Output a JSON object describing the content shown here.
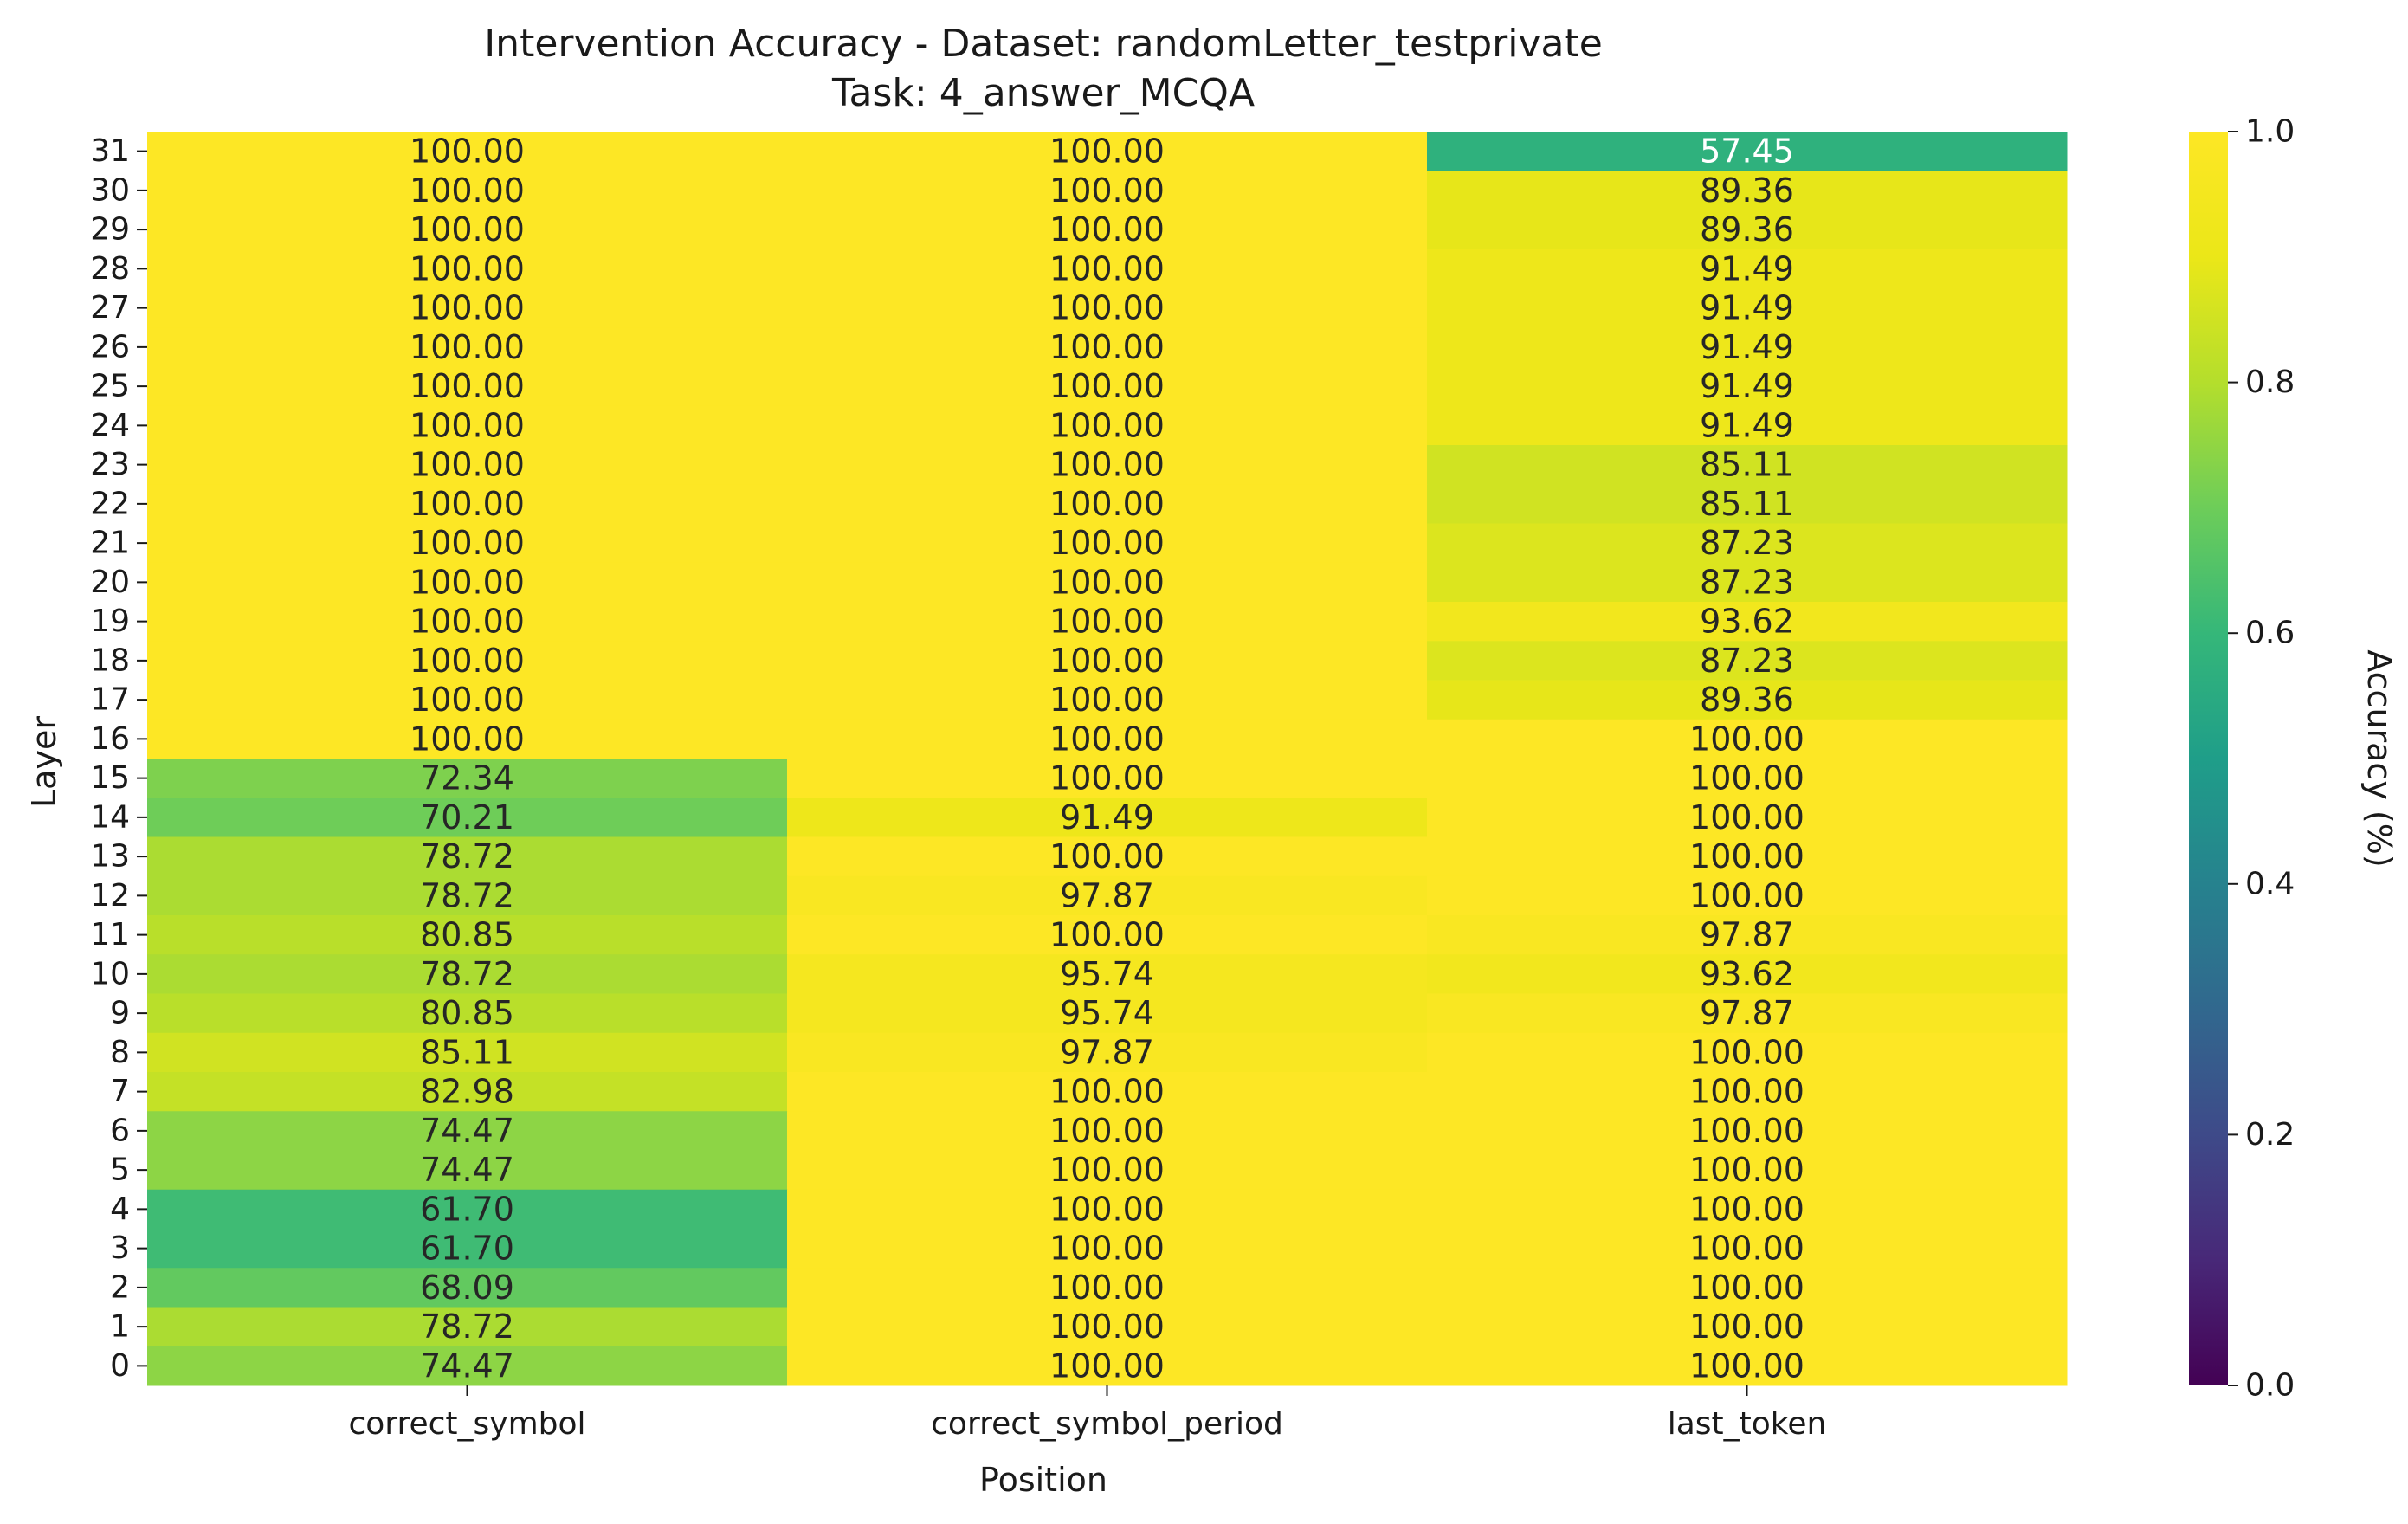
{
  "chart_data": {
    "type": "heatmap",
    "title": "Intervention Accuracy - Dataset: randomLetter_testprivate",
    "subtitle": "Task: 4_answer_MCQA",
    "xlabel": "Position",
    "ylabel": "Layer",
    "colorbar_label": "Accuracy (%)",
    "colormap": "viridis",
    "vmin": 0.0,
    "vmax": 1.0,
    "colorbar_ticks": [
      "0.0",
      "0.2",
      "0.4",
      "0.6",
      "0.8",
      "1.0"
    ],
    "x_categories": [
      "correct_symbol",
      "correct_symbol_period",
      "last_token"
    ],
    "y_categories": [
      "31",
      "30",
      "29",
      "28",
      "27",
      "26",
      "25",
      "24",
      "23",
      "22",
      "21",
      "20",
      "19",
      "18",
      "17",
      "16",
      "15",
      "14",
      "13",
      "12",
      "11",
      "10",
      "9",
      "8",
      "7",
      "6",
      "5",
      "4",
      "3",
      "2",
      "1",
      "0"
    ],
    "values": [
      [
        "100.00",
        "100.00",
        "57.45"
      ],
      [
        "100.00",
        "100.00",
        "89.36"
      ],
      [
        "100.00",
        "100.00",
        "89.36"
      ],
      [
        "100.00",
        "100.00",
        "91.49"
      ],
      [
        "100.00",
        "100.00",
        "91.49"
      ],
      [
        "100.00",
        "100.00",
        "91.49"
      ],
      [
        "100.00",
        "100.00",
        "91.49"
      ],
      [
        "100.00",
        "100.00",
        "91.49"
      ],
      [
        "100.00",
        "100.00",
        "85.11"
      ],
      [
        "100.00",
        "100.00",
        "85.11"
      ],
      [
        "100.00",
        "100.00",
        "87.23"
      ],
      [
        "100.00",
        "100.00",
        "87.23"
      ],
      [
        "100.00",
        "100.00",
        "93.62"
      ],
      [
        "100.00",
        "100.00",
        "87.23"
      ],
      [
        "100.00",
        "100.00",
        "89.36"
      ],
      [
        "100.00",
        "100.00",
        "100.00"
      ],
      [
        "72.34",
        "100.00",
        "100.00"
      ],
      [
        "70.21",
        "91.49",
        "100.00"
      ],
      [
        "78.72",
        "100.00",
        "100.00"
      ],
      [
        "78.72",
        "97.87",
        "100.00"
      ],
      [
        "80.85",
        "100.00",
        "97.87"
      ],
      [
        "78.72",
        "95.74",
        "93.62"
      ],
      [
        "80.85",
        "95.74",
        "97.87"
      ],
      [
        "85.11",
        "97.87",
        "100.00"
      ],
      [
        "82.98",
        "100.00",
        "100.00"
      ],
      [
        "74.47",
        "100.00",
        "100.00"
      ],
      [
        "74.47",
        "100.00",
        "100.00"
      ],
      [
        "61.70",
        "100.00",
        "100.00"
      ],
      [
        "61.70",
        "100.00",
        "100.00"
      ],
      [
        "68.09",
        "100.00",
        "100.00"
      ],
      [
        "78.72",
        "100.00",
        "100.00"
      ],
      [
        "74.47",
        "100.00",
        "100.00"
      ]
    ]
  }
}
